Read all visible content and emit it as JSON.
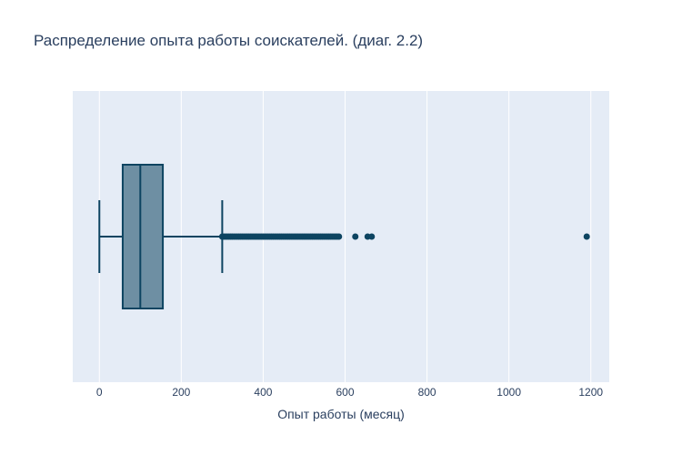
{
  "chart_data": {
    "type": "box",
    "title": "Распределение опыта работы соискателей. (диаг. 2.2)",
    "xlabel": "Опыт работы (месяц)",
    "ylabel": "",
    "orientation": "horizontal",
    "xlim": [
      -65,
      1245
    ],
    "x_ticks": [
      0,
      200,
      400,
      600,
      800,
      1000,
      1200
    ],
    "grid": true,
    "box": {
      "min": 0,
      "q1": 57,
      "median": 100,
      "q3": 155,
      "max": 300,
      "outliers": [
        300,
        305,
        310,
        315,
        320,
        325,
        330,
        335,
        340,
        345,
        350,
        355,
        360,
        365,
        370,
        375,
        380,
        385,
        390,
        395,
        400,
        405,
        410,
        415,
        420,
        425,
        430,
        435,
        440,
        445,
        450,
        455,
        460,
        465,
        470,
        475,
        480,
        485,
        490,
        495,
        500,
        505,
        510,
        515,
        520,
        525,
        530,
        535,
        540,
        545,
        550,
        555,
        560,
        565,
        570,
        575,
        580,
        585,
        625,
        655,
        665,
        1190
      ]
    },
    "colors": {
      "plot_bg": "#e5ecf6",
      "grid": "#ffffff",
      "box_line": "#0d4461",
      "box_fill": "#6e8fa3",
      "text": "#2a3f5f"
    }
  }
}
